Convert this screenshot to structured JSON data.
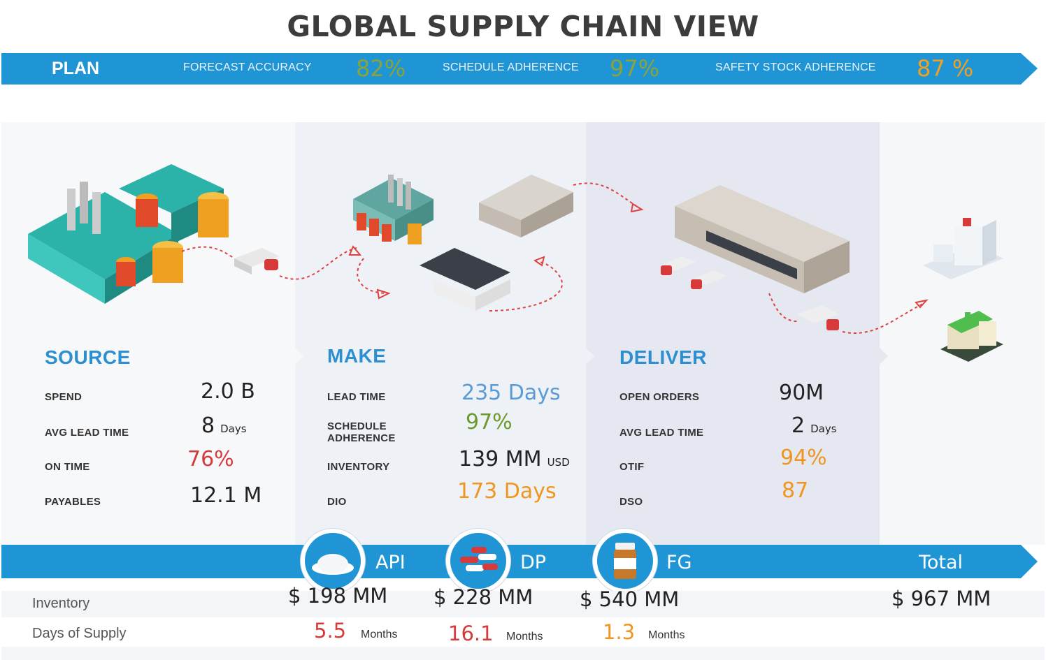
{
  "title": "GLOBAL SUPPLY CHAIN VIEW",
  "plan": {
    "label": "PLAN",
    "kpis": [
      {
        "label": "FORECAST ACCURACY",
        "value": "82%",
        "color": "#8aa33a"
      },
      {
        "label": "SCHEDULE ADHERENCE",
        "value": "97%",
        "color": "#8aa33a"
      },
      {
        "label": "SAFETY STOCK ADHERENCE",
        "value": "87 %",
        "color": "#f0a020"
      }
    ]
  },
  "source": {
    "title": "SOURCE",
    "metrics": [
      {
        "label": "SPEND",
        "value": "2.0 B",
        "unit": ""
      },
      {
        "label": "AVG LEAD TIME",
        "value": "8",
        "unit": "Days"
      },
      {
        "label": "ON TIME",
        "value": "76%",
        "unit": ""
      },
      {
        "label": "PAYABLES",
        "value": "12.1 M",
        "unit": ""
      }
    ]
  },
  "make": {
    "title": "MAKE",
    "metrics": [
      {
        "label": "LEAD TIME",
        "value": "235 Days",
        "unit": ""
      },
      {
        "label": "SCHEDULE",
        "label2": "ADHERENCE",
        "value": "97%",
        "unit": ""
      },
      {
        "label": "INVENTORY",
        "value": "139 MM",
        "unit": "USD"
      },
      {
        "label": "DIO",
        "value": "173 Days",
        "unit": ""
      }
    ]
  },
  "deliver": {
    "title": "DELIVER",
    "metrics": [
      {
        "label": "OPEN ORDERS",
        "value": "90M",
        "unit": ""
      },
      {
        "label": "AVG LEAD TIME",
        "value": "2",
        "unit": "Days"
      },
      {
        "label": "OTIF",
        "value": "94%",
        "unit": ""
      },
      {
        "label": "DSO",
        "value": "87",
        "unit": ""
      }
    ]
  },
  "colors": {
    "blue": "#1f95d6",
    "green": "#6a9a2e",
    "red": "#d63a3a",
    "orange": "#f0951e",
    "lightblue": "#5b9bd5"
  },
  "products": [
    {
      "label": "API",
      "icon": "powder-icon"
    },
    {
      "label": "DP",
      "icon": "capsules-icon"
    },
    {
      "label": "FG",
      "icon": "pill-bottle-icon"
    },
    {
      "label": "Total",
      "icon": ""
    }
  ],
  "inventory": {
    "label": "Inventory",
    "values": [
      "$ 198 MM",
      "$ 228 MM",
      "$ 540 MM",
      "$ 967 MM"
    ]
  },
  "days_of_supply": {
    "label": "Days of Supply",
    "values": [
      "5.5",
      "16.1",
      "1.3"
    ],
    "unit": "Months"
  }
}
